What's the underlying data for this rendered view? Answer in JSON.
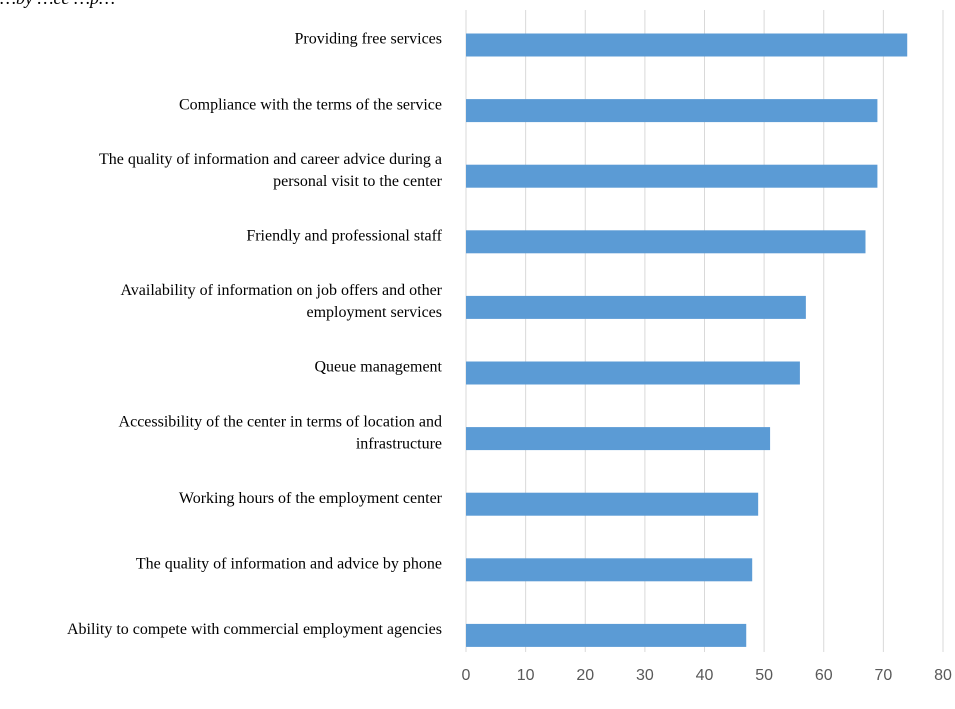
{
  "chart_data": {
    "type": "bar",
    "orientation": "horizontal",
    "title": "",
    "xlabel": "",
    "ylabel": "",
    "xlim": [
      0,
      80
    ],
    "xticks": [
      0,
      10,
      20,
      30,
      40,
      50,
      60,
      70,
      80
    ],
    "grid": true,
    "legend": "none",
    "bar_color": "#5b9bd5",
    "categories": [
      [
        "Providing free services"
      ],
      [
        "Compliance with the terms of the service"
      ],
      [
        "The quality of information and career advice during a",
        "personal visit to the center"
      ],
      [
        "Friendly and professional staff"
      ],
      [
        "Availability of information on job offers and other",
        "employment services"
      ],
      [
        "Queue management"
      ],
      [
        "Accessibility of the center in terms of location and",
        "infrastructure"
      ],
      [
        "Working hours of the employment center"
      ],
      [
        "The quality of information and advice by phone"
      ],
      [
        "Ability to compete with commercial employment agencies"
      ]
    ],
    "values": [
      74,
      69,
      69,
      67,
      57,
      56,
      51,
      49,
      48,
      47
    ]
  },
  "partial_title": "…by …ce …p…"
}
